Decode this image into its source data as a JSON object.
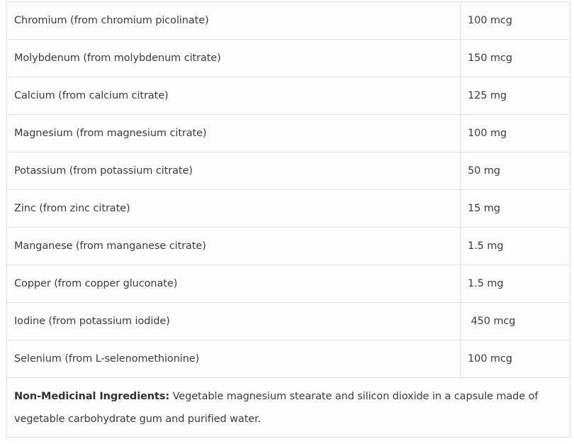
{
  "rows": [
    {
      "ingredient": "Chromium (from chromium picolinate)",
      "amount": "100 mcg"
    },
    {
      "ingredient": "Molybdenum (from molybdenum citrate)",
      "amount": "150 mcg"
    },
    {
      "ingredient": "Calcium (from calcium citrate)",
      "amount": "125 mg"
    },
    {
      "ingredient": "Magnesium (from magnesium citrate)",
      "amount": "100 mg"
    },
    {
      "ingredient": "Potassium (from potassium citrate)",
      "amount": "50 mg"
    },
    {
      "ingredient": "Zinc (from zinc citrate)",
      "amount": "15 mg"
    },
    {
      "ingredient": "Manganese (from manganese citrate)",
      "amount": "1.5 mg"
    },
    {
      "ingredient": "Copper (from copper gluconate)",
      "amount": "1.5 mg"
    },
    {
      "ingredient": "Iodine (from potassium iodide)",
      "amount": " 450 mcg"
    },
    {
      "ingredient": "Selenium (from L-selenomethionine)",
      "amount": "100 mcg"
    }
  ],
  "non_medicinal": {
    "label": "Non-Medicinal Ingredients:",
    "text": " Vegetable magnesium stearate and silicon dioxide in a capsule made of vegetable carbohydrate gum and purified water."
  }
}
